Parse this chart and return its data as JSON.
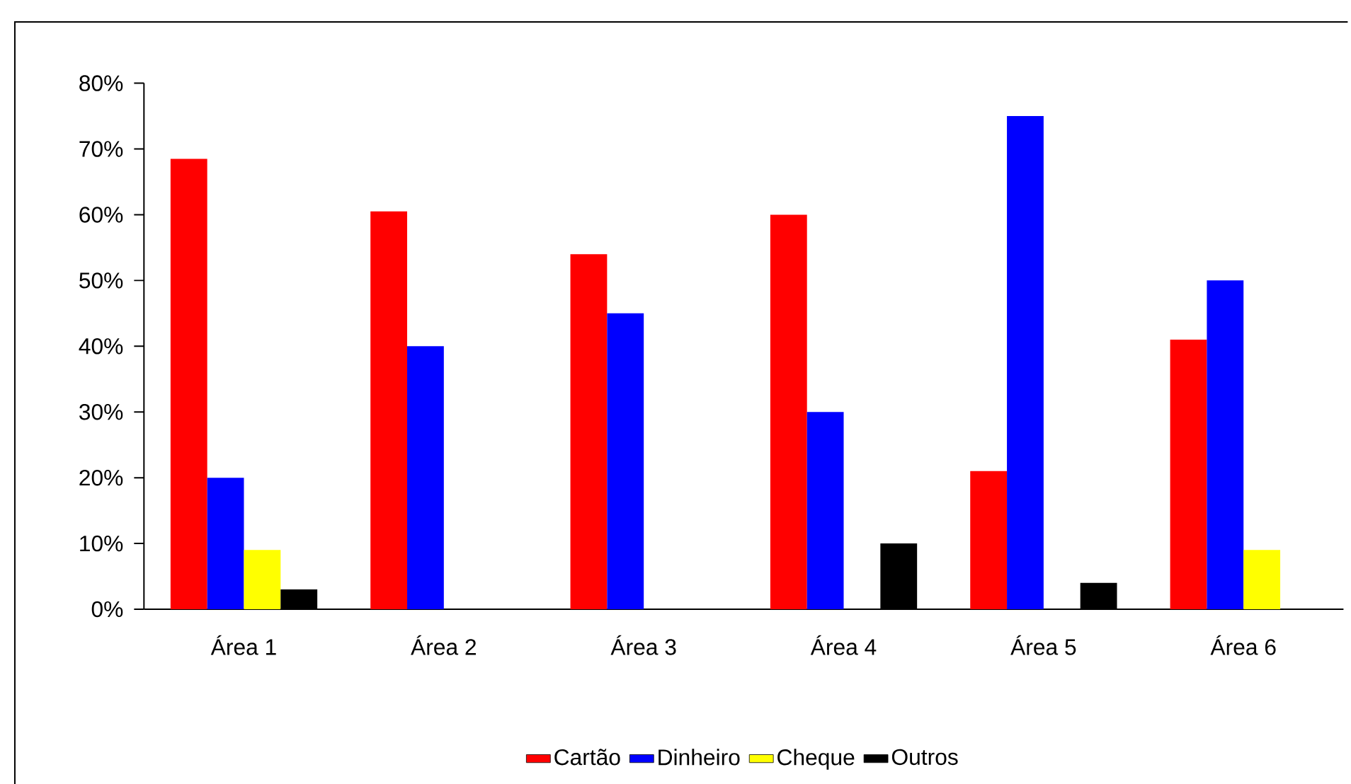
{
  "chart_data": {
    "type": "bar",
    "categories": [
      "Área 1",
      "Área 2",
      "Área 3",
      "Área 4",
      "Área 5",
      "Área 6"
    ],
    "series": [
      {
        "name": "Cartão",
        "color": "#ff0000",
        "values": [
          68.5,
          60.5,
          54,
          60,
          21,
          41
        ]
      },
      {
        "name": "Dinheiro",
        "color": "#0000ff",
        "values": [
          20,
          40,
          45,
          30,
          75,
          50
        ]
      },
      {
        "name": "Cheque",
        "color": "#ffff00",
        "values": [
          9,
          null,
          null,
          null,
          null,
          9
        ]
      },
      {
        "name": "Outros",
        "color": "#000000",
        "values": [
          3,
          null,
          null,
          10,
          4,
          null
        ]
      }
    ],
    "ylim": [
      0,
      80
    ],
    "yticks": [
      {
        "value": 0,
        "label": "0%"
      },
      {
        "value": 10,
        "label": "10%"
      },
      {
        "value": 20,
        "label": "20%"
      },
      {
        "value": 30,
        "label": "30%"
      },
      {
        "value": 40,
        "label": "40%"
      },
      {
        "value": 50,
        "label": "50%"
      },
      {
        "value": 60,
        "label": "60%"
      },
      {
        "value": 70,
        "label": "70%"
      },
      {
        "value": 80,
        "label": "80%"
      }
    ],
    "grid": false,
    "legend": "bottom"
  }
}
